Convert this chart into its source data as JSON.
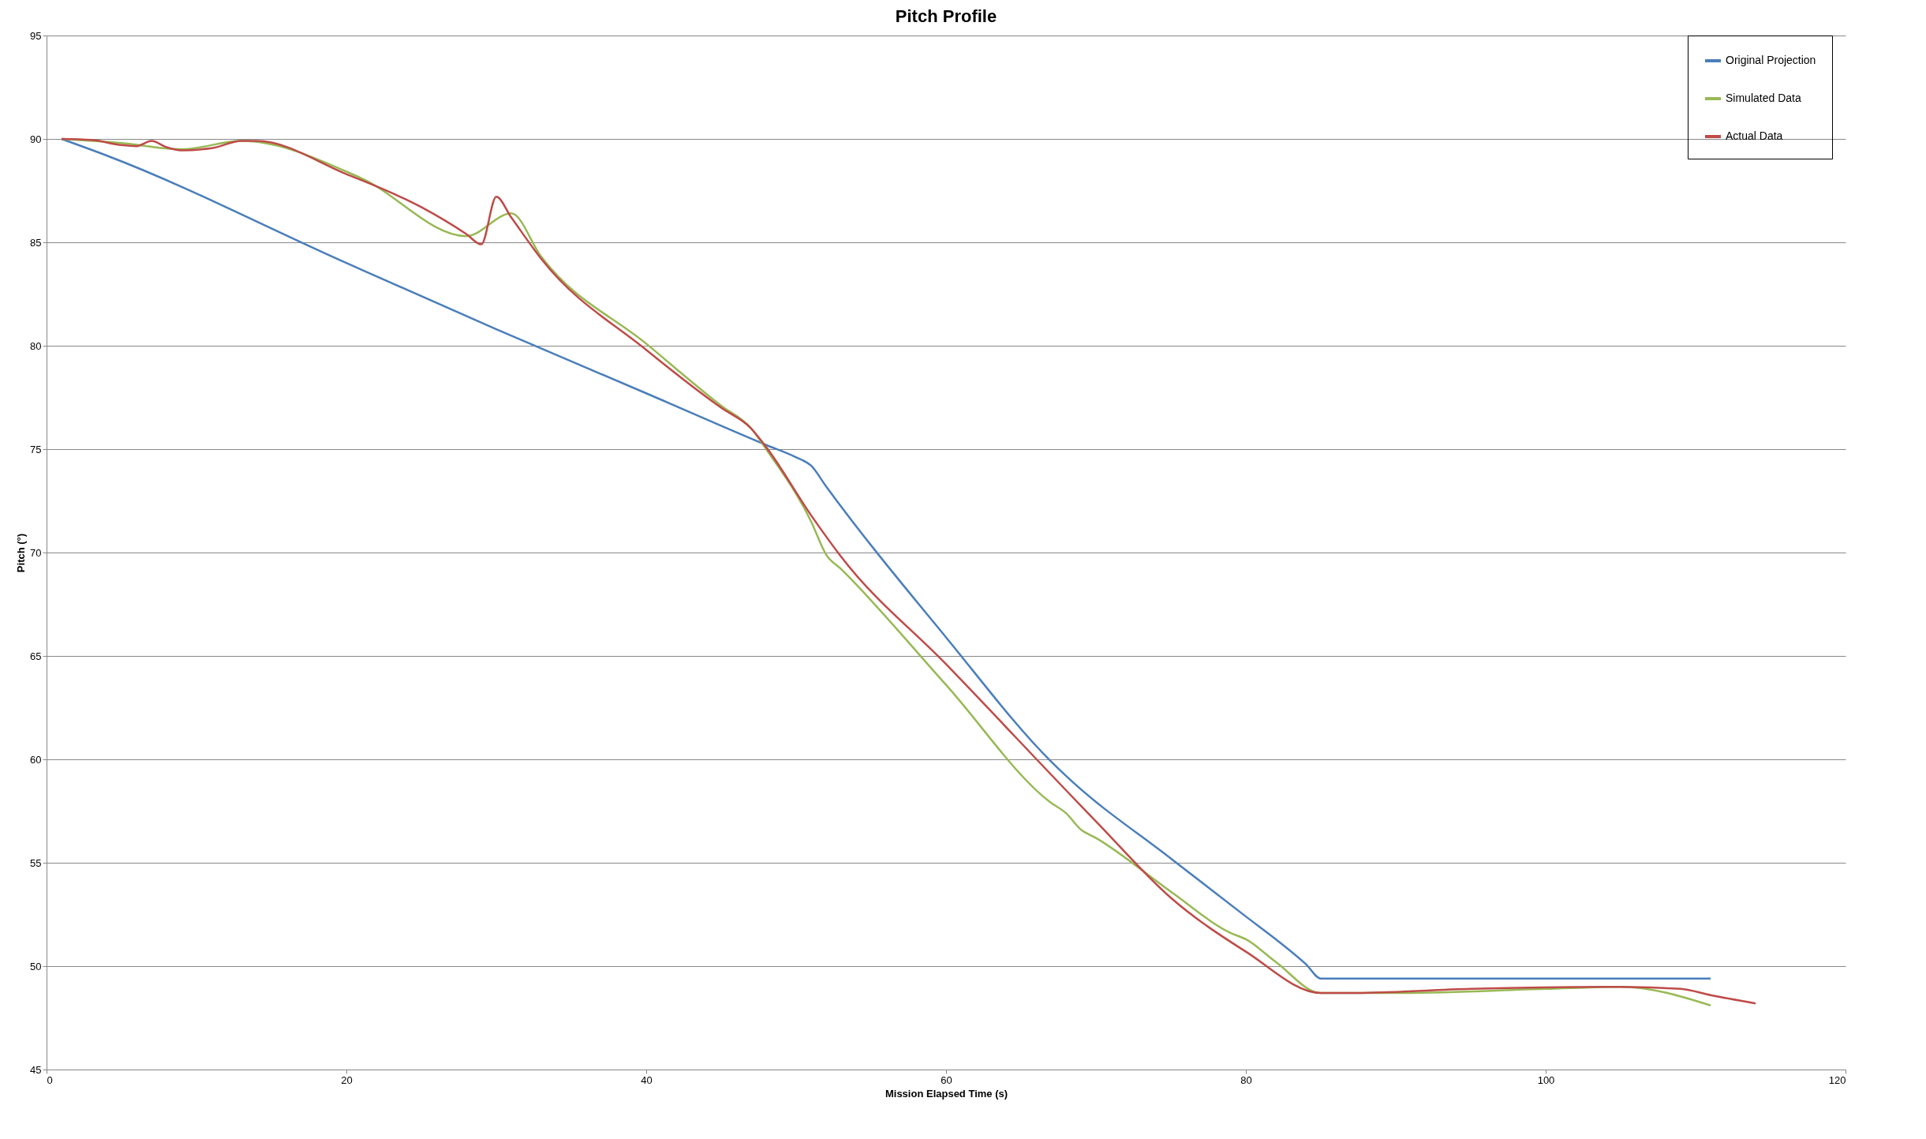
{
  "chart_data": {
    "type": "line",
    "title": "Pitch Profile",
    "xlabel": "Mission Elapsed Time (s)",
    "ylabel": "Pitch (°)",
    "xlim": [
      0,
      120
    ],
    "xticks": [
      0,
      20,
      40,
      60,
      80,
      100,
      120
    ],
    "ylim": [
      45,
      95
    ],
    "yticks": [
      45,
      50,
      55,
      60,
      65,
      70,
      75,
      80,
      85,
      90,
      95
    ],
    "grid": "y",
    "legend": "right",
    "marker": "none",
    "line_style": "solid",
    "series": [
      {
        "name": "Original Projection",
        "color": "#4a7ebb",
        "x": [
          1,
          4,
          20,
          30,
          40,
          48,
          50,
          51,
          52,
          60,
          67,
          68,
          75,
          80,
          82,
          84,
          85,
          86,
          111
        ],
        "values": [
          90,
          89.2,
          84,
          80.8,
          77.7,
          75.2,
          74.6,
          74.2,
          73.2,
          65.9,
          59.9,
          59.2,
          55.2,
          52.4,
          51.3,
          50.1,
          49.4,
          49.4,
          49.4
        ]
      },
      {
        "name": "Simulated Data",
        "color": "#98b954",
        "x": [
          1,
          5,
          9,
          13,
          21,
          28,
          31,
          33,
          40,
          45,
          47,
          48,
          51,
          52,
          53,
          60,
          67,
          68,
          69,
          70,
          75,
          79,
          80,
          82,
          85,
          90,
          100,
          105,
          111
        ],
        "values": [
          90,
          89.8,
          89.5,
          89.9,
          88.1,
          85.3,
          86.4,
          84.3,
          80.1,
          77.1,
          76,
          75,
          71.5,
          69.9,
          69.2,
          63.6,
          57.9,
          57.4,
          56.6,
          56.2,
          53.6,
          51.6,
          51.3,
          50.2,
          48.7,
          48.7,
          48.9,
          49,
          48.1
        ]
      },
      {
        "name": "Actual Data",
        "color": "#be4b48",
        "x": [
          1,
          3,
          5,
          6,
          7,
          8,
          9,
          11,
          13,
          14,
          20,
          25,
          28,
          29,
          30,
          31,
          33,
          40,
          45,
          47,
          48,
          51,
          53,
          60,
          70,
          75,
          80,
          85,
          87,
          95,
          105,
          109,
          111,
          114
        ],
        "values": [
          90,
          89.95,
          89.7,
          89.65,
          89.9,
          89.6,
          89.45,
          89.55,
          89.9,
          89.9,
          88.3,
          86.7,
          85.4,
          84.9,
          87.2,
          86.2,
          84.2,
          79.8,
          77,
          76,
          75.1,
          71.8,
          69.8,
          64.6,
          57,
          53.3,
          50.7,
          48.7,
          48.7,
          48.9,
          49,
          48.9,
          48.6,
          48.2
        ]
      }
    ]
  }
}
